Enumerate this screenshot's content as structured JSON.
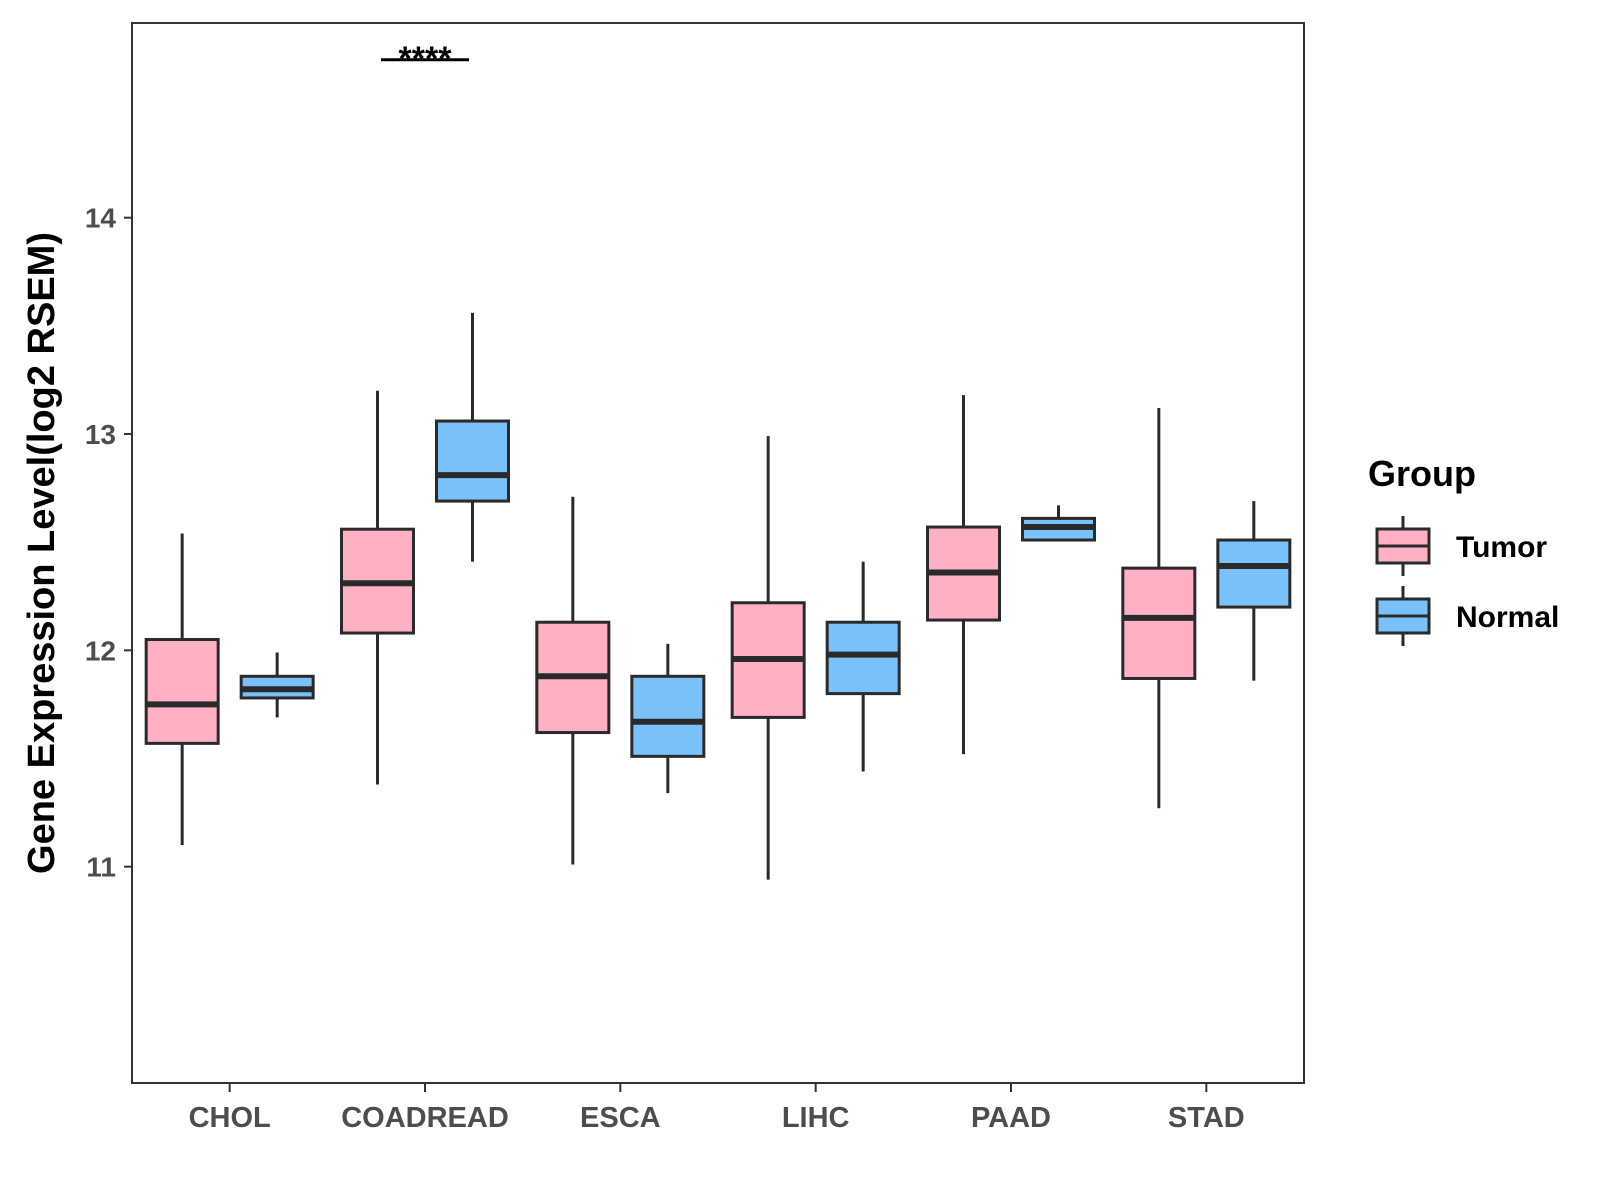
{
  "chart_data": {
    "type": "boxplot",
    "title": "",
    "xlabel": "",
    "ylabel": "Gene Expression Level(log2 RSEM)",
    "ylim": [
      10.0,
      14.9
    ],
    "yticks": [
      11,
      12,
      13,
      14
    ],
    "ytick_labels": [
      "11",
      "12",
      "13",
      "14"
    ],
    "categories": [
      "CHOL",
      "COADREAD",
      "ESCA",
      "LIHC",
      "PAAD",
      "STAD"
    ],
    "legend": {
      "title": "Group",
      "position": "right",
      "entries": [
        {
          "name": "Tumor",
          "color": "#FFB0C2"
        },
        {
          "name": "Normal",
          "color": "#78C1FA"
        }
      ]
    },
    "series": [
      {
        "name": "Tumor",
        "color": "#FFB0C2",
        "boxes": [
          {
            "category": "CHOL",
            "min": 11.1,
            "q1": 11.57,
            "median": 11.75,
            "q3": 12.05,
            "max": 12.54
          },
          {
            "category": "COADREAD",
            "min": 11.38,
            "q1": 12.08,
            "median": 12.31,
            "q3": 12.56,
            "max": 13.2
          },
          {
            "category": "ESCA",
            "min": 11.01,
            "q1": 11.62,
            "median": 11.88,
            "q3": 12.13,
            "max": 12.71
          },
          {
            "category": "LIHC",
            "min": 10.94,
            "q1": 11.69,
            "median": 11.96,
            "q3": 12.22,
            "max": 12.99
          },
          {
            "category": "PAAD",
            "min": 11.52,
            "q1": 12.14,
            "median": 12.36,
            "q3": 12.57,
            "max": 13.18
          },
          {
            "category": "STAD",
            "min": 11.27,
            "q1": 11.87,
            "median": 12.15,
            "q3": 12.38,
            "max": 13.12
          }
        ]
      },
      {
        "name": "Normal",
        "color": "#78C1FA",
        "boxes": [
          {
            "category": "CHOL",
            "min": 11.69,
            "q1": 11.78,
            "median": 11.82,
            "q3": 11.88,
            "max": 11.99
          },
          {
            "category": "COADREAD",
            "min": 12.41,
            "q1": 12.69,
            "median": 12.81,
            "q3": 13.06,
            "max": 13.56
          },
          {
            "category": "ESCA",
            "min": 11.34,
            "q1": 11.51,
            "median": 11.67,
            "q3": 11.88,
            "max": 12.03
          },
          {
            "category": "LIHC",
            "min": 11.44,
            "q1": 11.8,
            "median": 11.98,
            "q3": 12.13,
            "max": 12.41
          },
          {
            "category": "PAAD",
            "min": 12.51,
            "q1": 12.51,
            "median": 12.57,
            "q3": 12.61,
            "max": 12.67
          },
          {
            "category": "STAD",
            "min": 11.86,
            "q1": 12.2,
            "median": 12.39,
            "q3": 12.51,
            "max": 12.69
          }
        ]
      }
    ],
    "annotations": [
      {
        "category": "COADREAD",
        "text": "****",
        "y": 14.73
      }
    ]
  }
}
